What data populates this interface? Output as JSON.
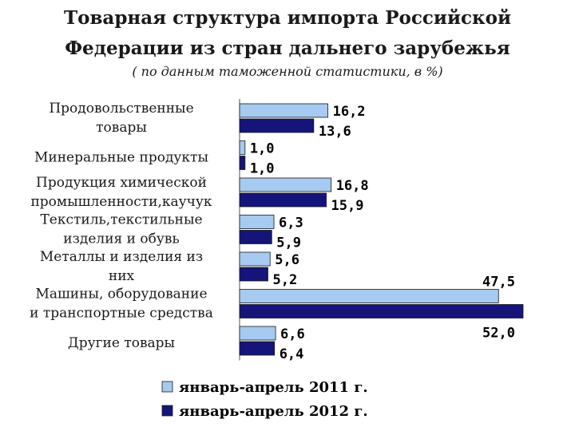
{
  "chart_data": {
    "type": "bar",
    "orientation": "horizontal",
    "title_line1": "Товарная структура импорта Российской",
    "title_line2": "Федерации из стран дальнего зарубежья",
    "subtitle": "( по данным таможенной статистики, в %)",
    "categories": [
      [
        "Продовольственные",
        "товары"
      ],
      [
        "Минеральные продукты"
      ],
      [
        "Продукция химической",
        "промышленности,каучук"
      ],
      [
        "Текстиль,текстильные",
        "изделия и обувь"
      ],
      [
        "Металлы и изделия из",
        "них"
      ],
      [
        "Машины, оборудование",
        "и транспортные средства"
      ],
      [
        "Другие товары"
      ]
    ],
    "series": [
      {
        "name": "январь-апрель 2011 г.",
        "color": "#a6caf0",
        "values": [
          16.2,
          1.0,
          16.8,
          6.3,
          5.6,
          47.5,
          6.6
        ],
        "labels": [
          "16,2",
          "1,0",
          "16,8",
          "6,3",
          "5,6",
          "47,5",
          "6,6"
        ]
      },
      {
        "name": "январь-апрель 2012 г.",
        "color": "#14147a",
        "values": [
          13.6,
          1.0,
          15.9,
          5.9,
          5.2,
          52.0,
          6.4
        ],
        "labels": [
          "13,6",
          "1,0",
          "15,9",
          "5,9",
          "5,2",
          "52,0",
          "6,4"
        ]
      }
    ],
    "xlim": [
      0,
      52
    ],
    "grid": false,
    "legend_position": "bottom"
  }
}
